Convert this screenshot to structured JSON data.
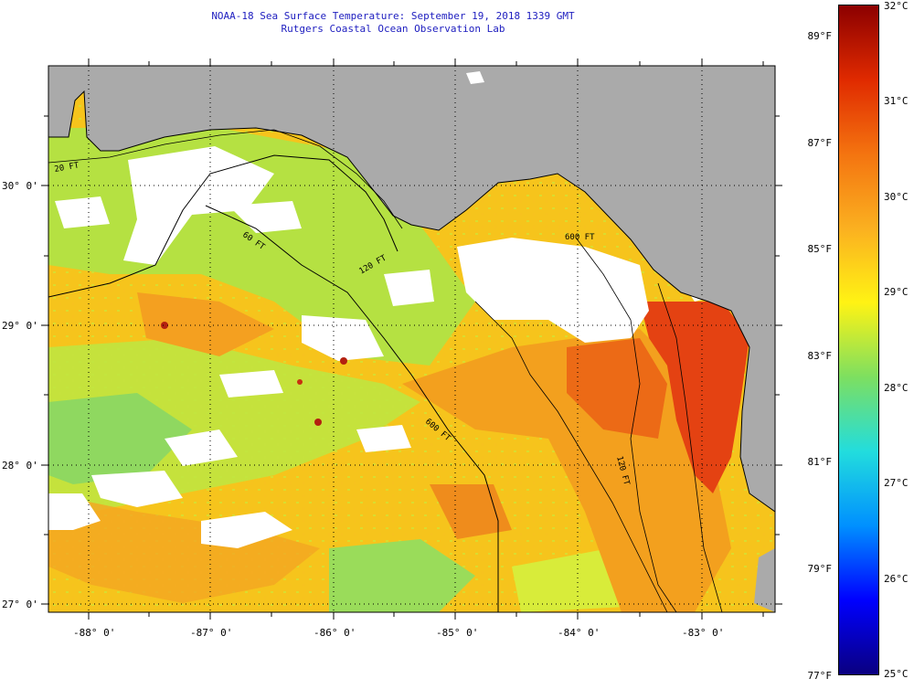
{
  "title": "NOAA-18 Sea Surface Temperature:  September 19, 2018 1339 GMT",
  "subtitle": "Rutgers Coastal Ocean Observation Lab",
  "map": {
    "lat_ticks": [
      "30° 0'",
      "29° 0'",
      "28° 0'",
      "27° 0'"
    ],
    "lon_ticks": [
      "-88° 0'",
      "-87° 0'",
      "-86° 0'",
      "-85° 0'",
      "-84° 0'",
      "-83° 0'"
    ],
    "contour_labels": [
      "20 FT",
      "60 FT",
      "120 FT",
      "600 FT",
      "600 FT",
      "120 FT"
    ],
    "colors": {
      "land": "#aaaaaa",
      "cloud": "#ffffff",
      "warm": "#f2a21a",
      "cool": "#9fde4a",
      "hot": "#e23c12"
    }
  },
  "colorbar": {
    "fahrenheit": [
      "89°F",
      "87°F",
      "85°F",
      "83°F",
      "81°F",
      "79°F",
      "77°F"
    ],
    "celsius": [
      "32°C",
      "31°C",
      "30°C",
      "29°C",
      "28°C",
      "27°C",
      "26°C",
      "25°C"
    ],
    "stops": [
      "#0a0080",
      "#0000ff",
      "#0090ff",
      "#22dddd",
      "#7ddf60",
      "#fff314",
      "#fbb020",
      "#f47410",
      "#e02a00",
      "#8c0000"
    ]
  }
}
